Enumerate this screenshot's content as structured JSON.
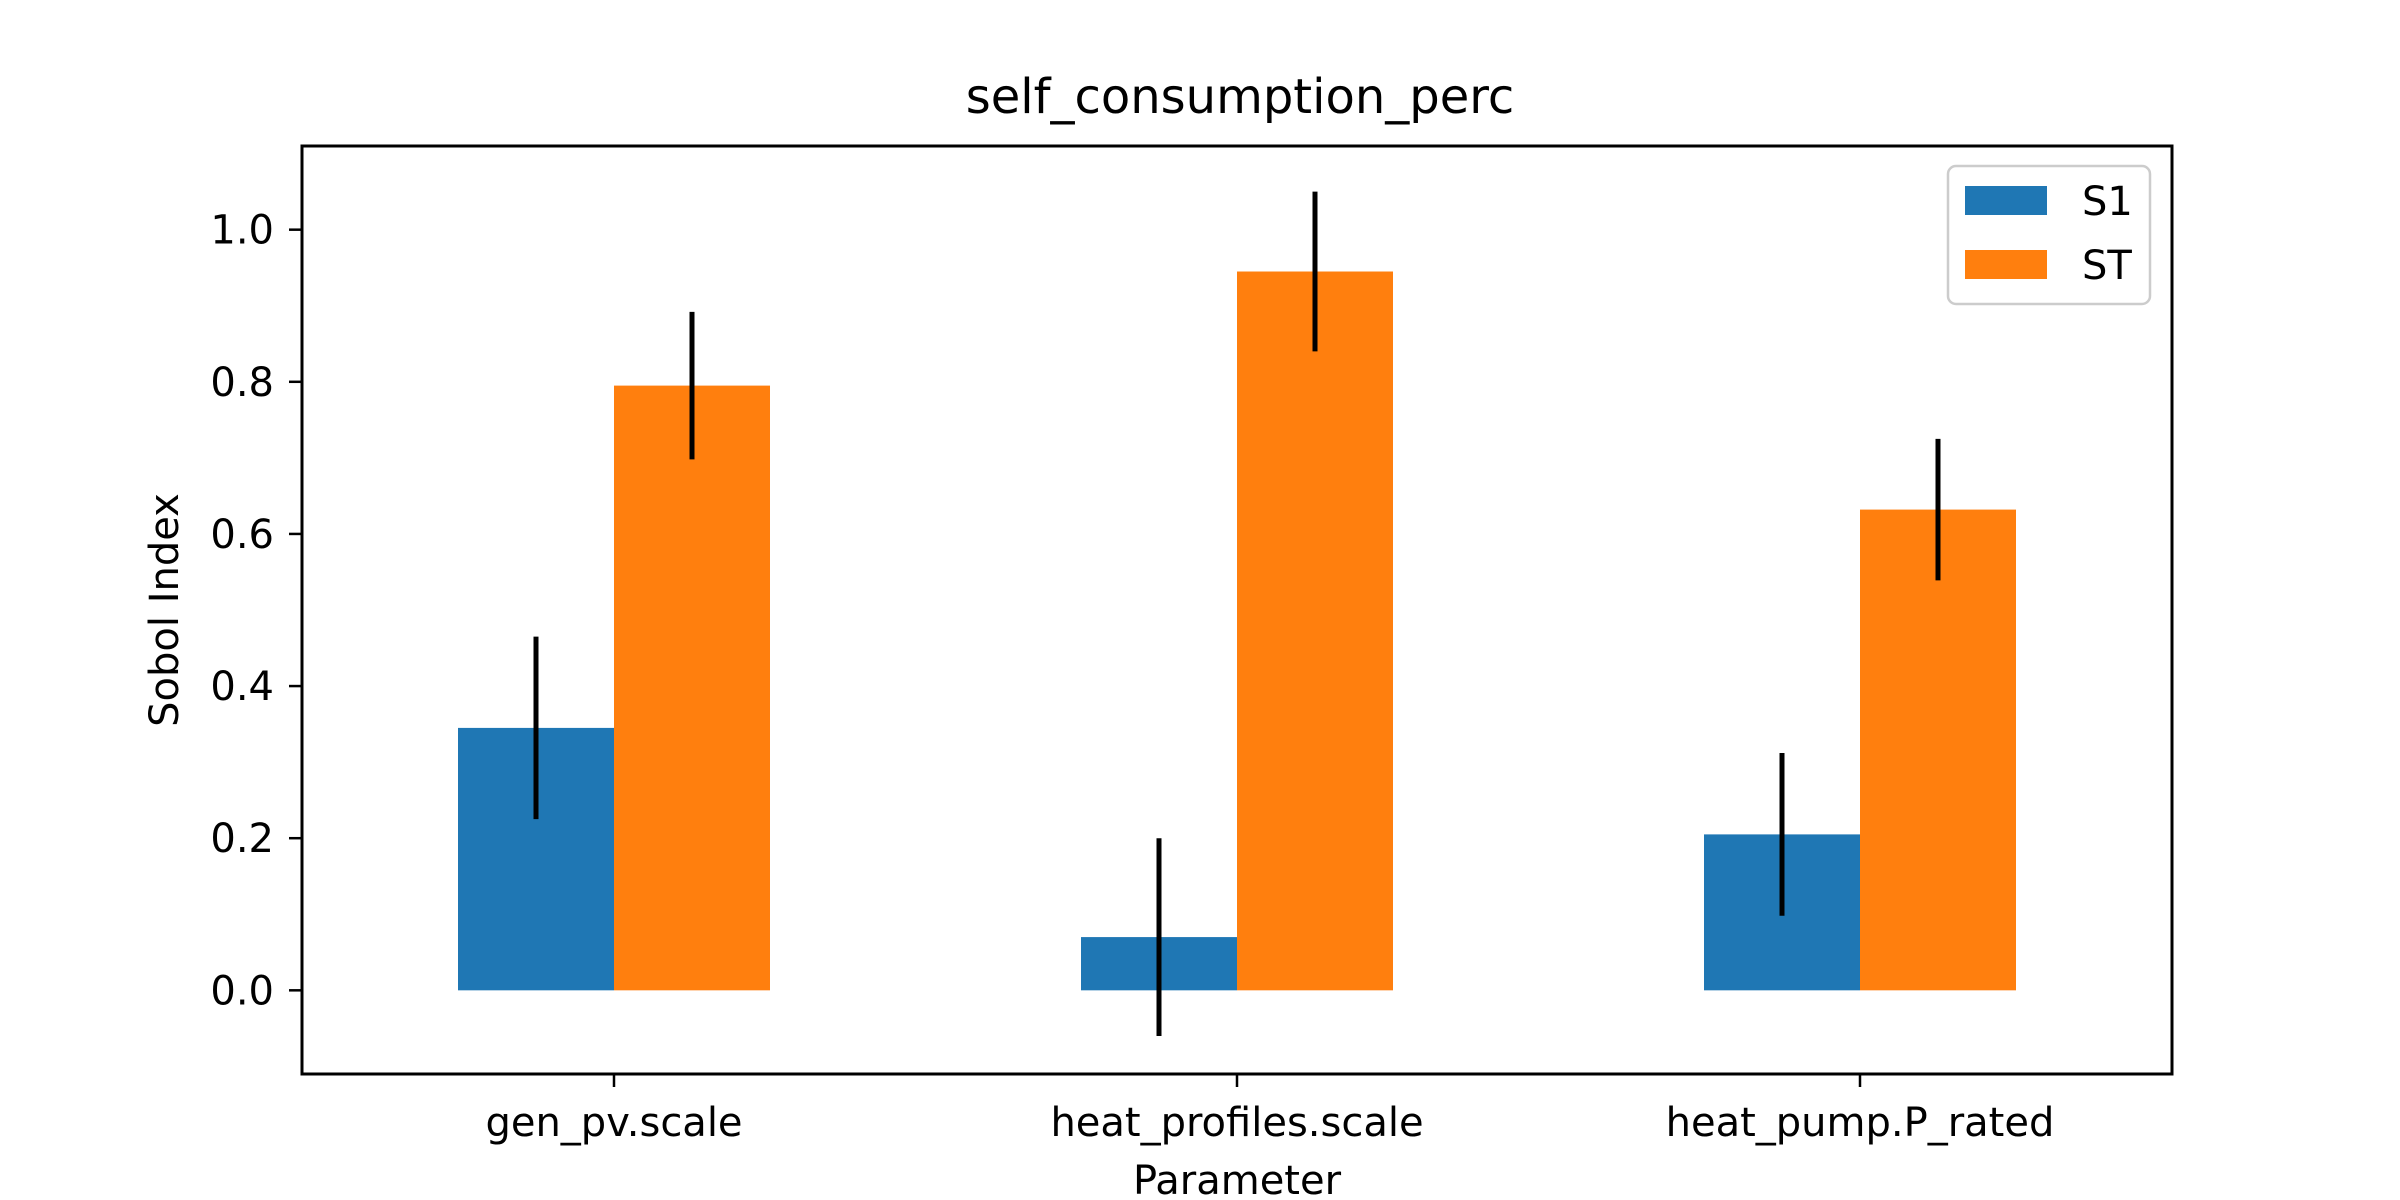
{
  "chart_data": {
    "type": "bar",
    "title": "self_consumption_perc",
    "xlabel": "Parameter",
    "ylabel": "Sobol Index",
    "categories": [
      "gen_pv.scale",
      "heat_profiles.scale",
      "heat_pump.P_rated"
    ],
    "series": [
      {
        "name": "S1",
        "color": "#1f77b4",
        "values": [
          0.345,
          0.07,
          0.205
        ],
        "errors": [
          0.12,
          0.13,
          0.107
        ]
      },
      {
        "name": "ST",
        "color": "#ff7f0e",
        "values": [
          0.795,
          0.945,
          0.632
        ],
        "errors": [
          0.097,
          0.105,
          0.093
        ]
      }
    ],
    "ylim": [
      -0.11,
      1.11
    ],
    "yticks": [
      0.0,
      0.2,
      0.4,
      0.6,
      0.8,
      1.0
    ],
    "ytick_labels": [
      "0.0",
      "0.2",
      "0.4",
      "0.6",
      "0.8",
      "1.0"
    ],
    "grid": false,
    "legend_position": "top-right",
    "error_bar_color": "#000000"
  }
}
